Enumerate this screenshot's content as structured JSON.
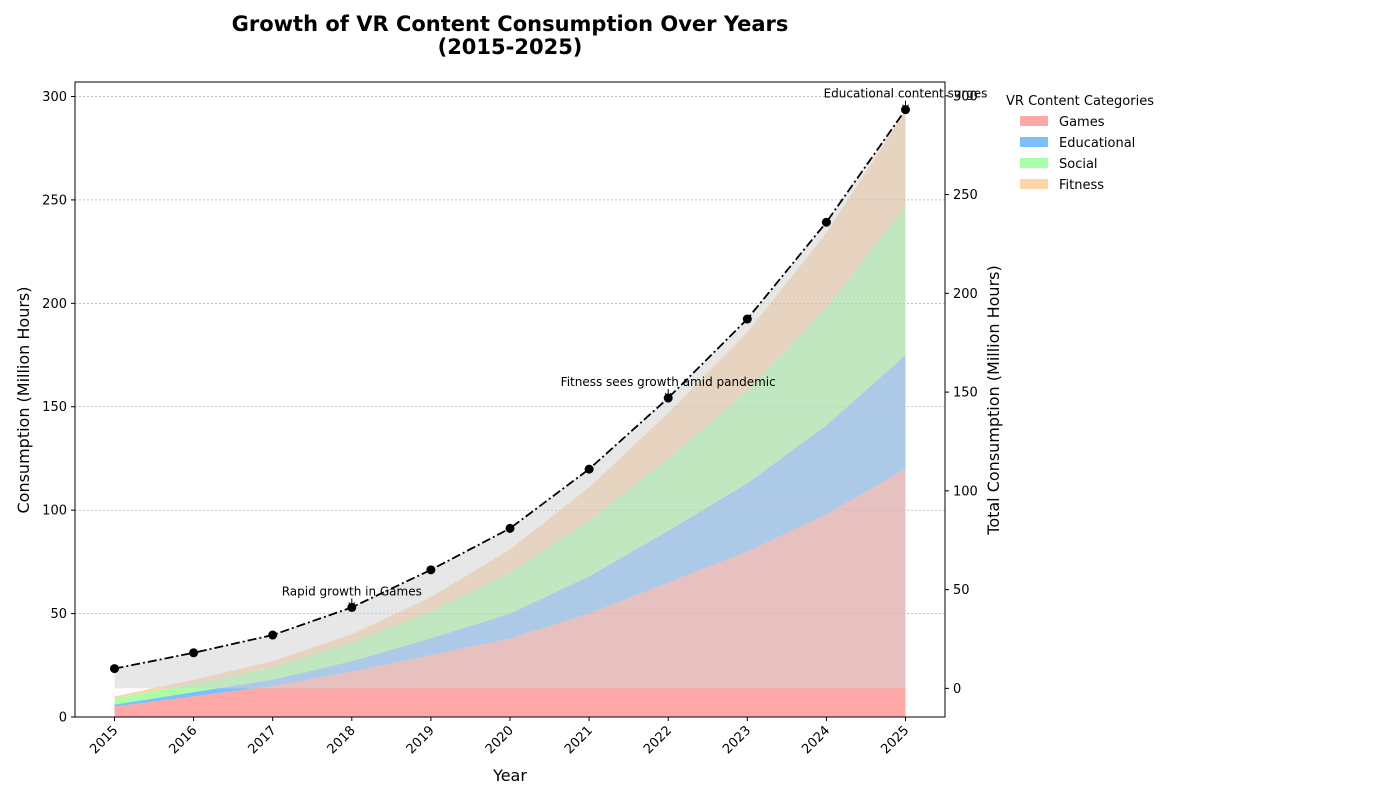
{
  "chart_data": {
    "type": "area",
    "title_line1": "Growth of VR Content Consumption Over Years",
    "title_line2": "(2015-2025)",
    "xlabel": "Year",
    "ylabel": "Consumption (Million Hours)",
    "ylabel_right": "Total Consumption (Million Hours)",
    "x": [
      "2015",
      "2016",
      "2017",
      "2018",
      "2019",
      "2020",
      "2021",
      "2022",
      "2023",
      "2024",
      "2025"
    ],
    "ylim": [
      0,
      307
    ],
    "yticks": [
      0,
      50,
      100,
      150,
      200,
      250,
      300
    ],
    "ylim_right": [
      -14.5,
      307
    ],
    "yticks_right": [
      0,
      50,
      100,
      150,
      200,
      250,
      300
    ],
    "grid": "horizontal dashed",
    "legend_title": "VR Content Categories",
    "legend_position": "right, outside plot",
    "series": [
      {
        "name": "Games",
        "color": "#ff9999",
        "values": [
          5,
          10,
          15,
          22,
          30,
          38,
          50,
          65,
          80,
          98,
          120
        ]
      },
      {
        "name": "Educational",
        "color": "#66b3ff",
        "values": [
          1,
          2,
          3,
          5,
          8,
          12,
          18,
          25,
          33,
          43,
          55
        ]
      },
      {
        "name": "Social",
        "color": "#99ff99",
        "values": [
          3,
          4,
          6,
          9,
          13,
          20,
          27,
          35,
          45,
          57,
          72
        ]
      },
      {
        "name": "Fitness",
        "color": "#ffcc99",
        "values": [
          1,
          2,
          3,
          4,
          7,
          11,
          16,
          22,
          28,
          36,
          46
        ]
      }
    ],
    "total": {
      "color": "#000000",
      "style": "dash-dot with markers",
      "values": [
        10,
        18,
        27,
        41,
        60,
        81,
        111,
        147,
        187,
        236,
        293
      ]
    },
    "total_fill_color": "#d3d3d3",
    "annotations": [
      {
        "text": "Rapid growth in Games",
        "x": "2018",
        "y": 41
      },
      {
        "text": "Fitness sees growth amid pandemic",
        "x": "2022",
        "y": 147
      },
      {
        "text": "Educational content surges",
        "x": "2025",
        "y": 293
      }
    ]
  }
}
